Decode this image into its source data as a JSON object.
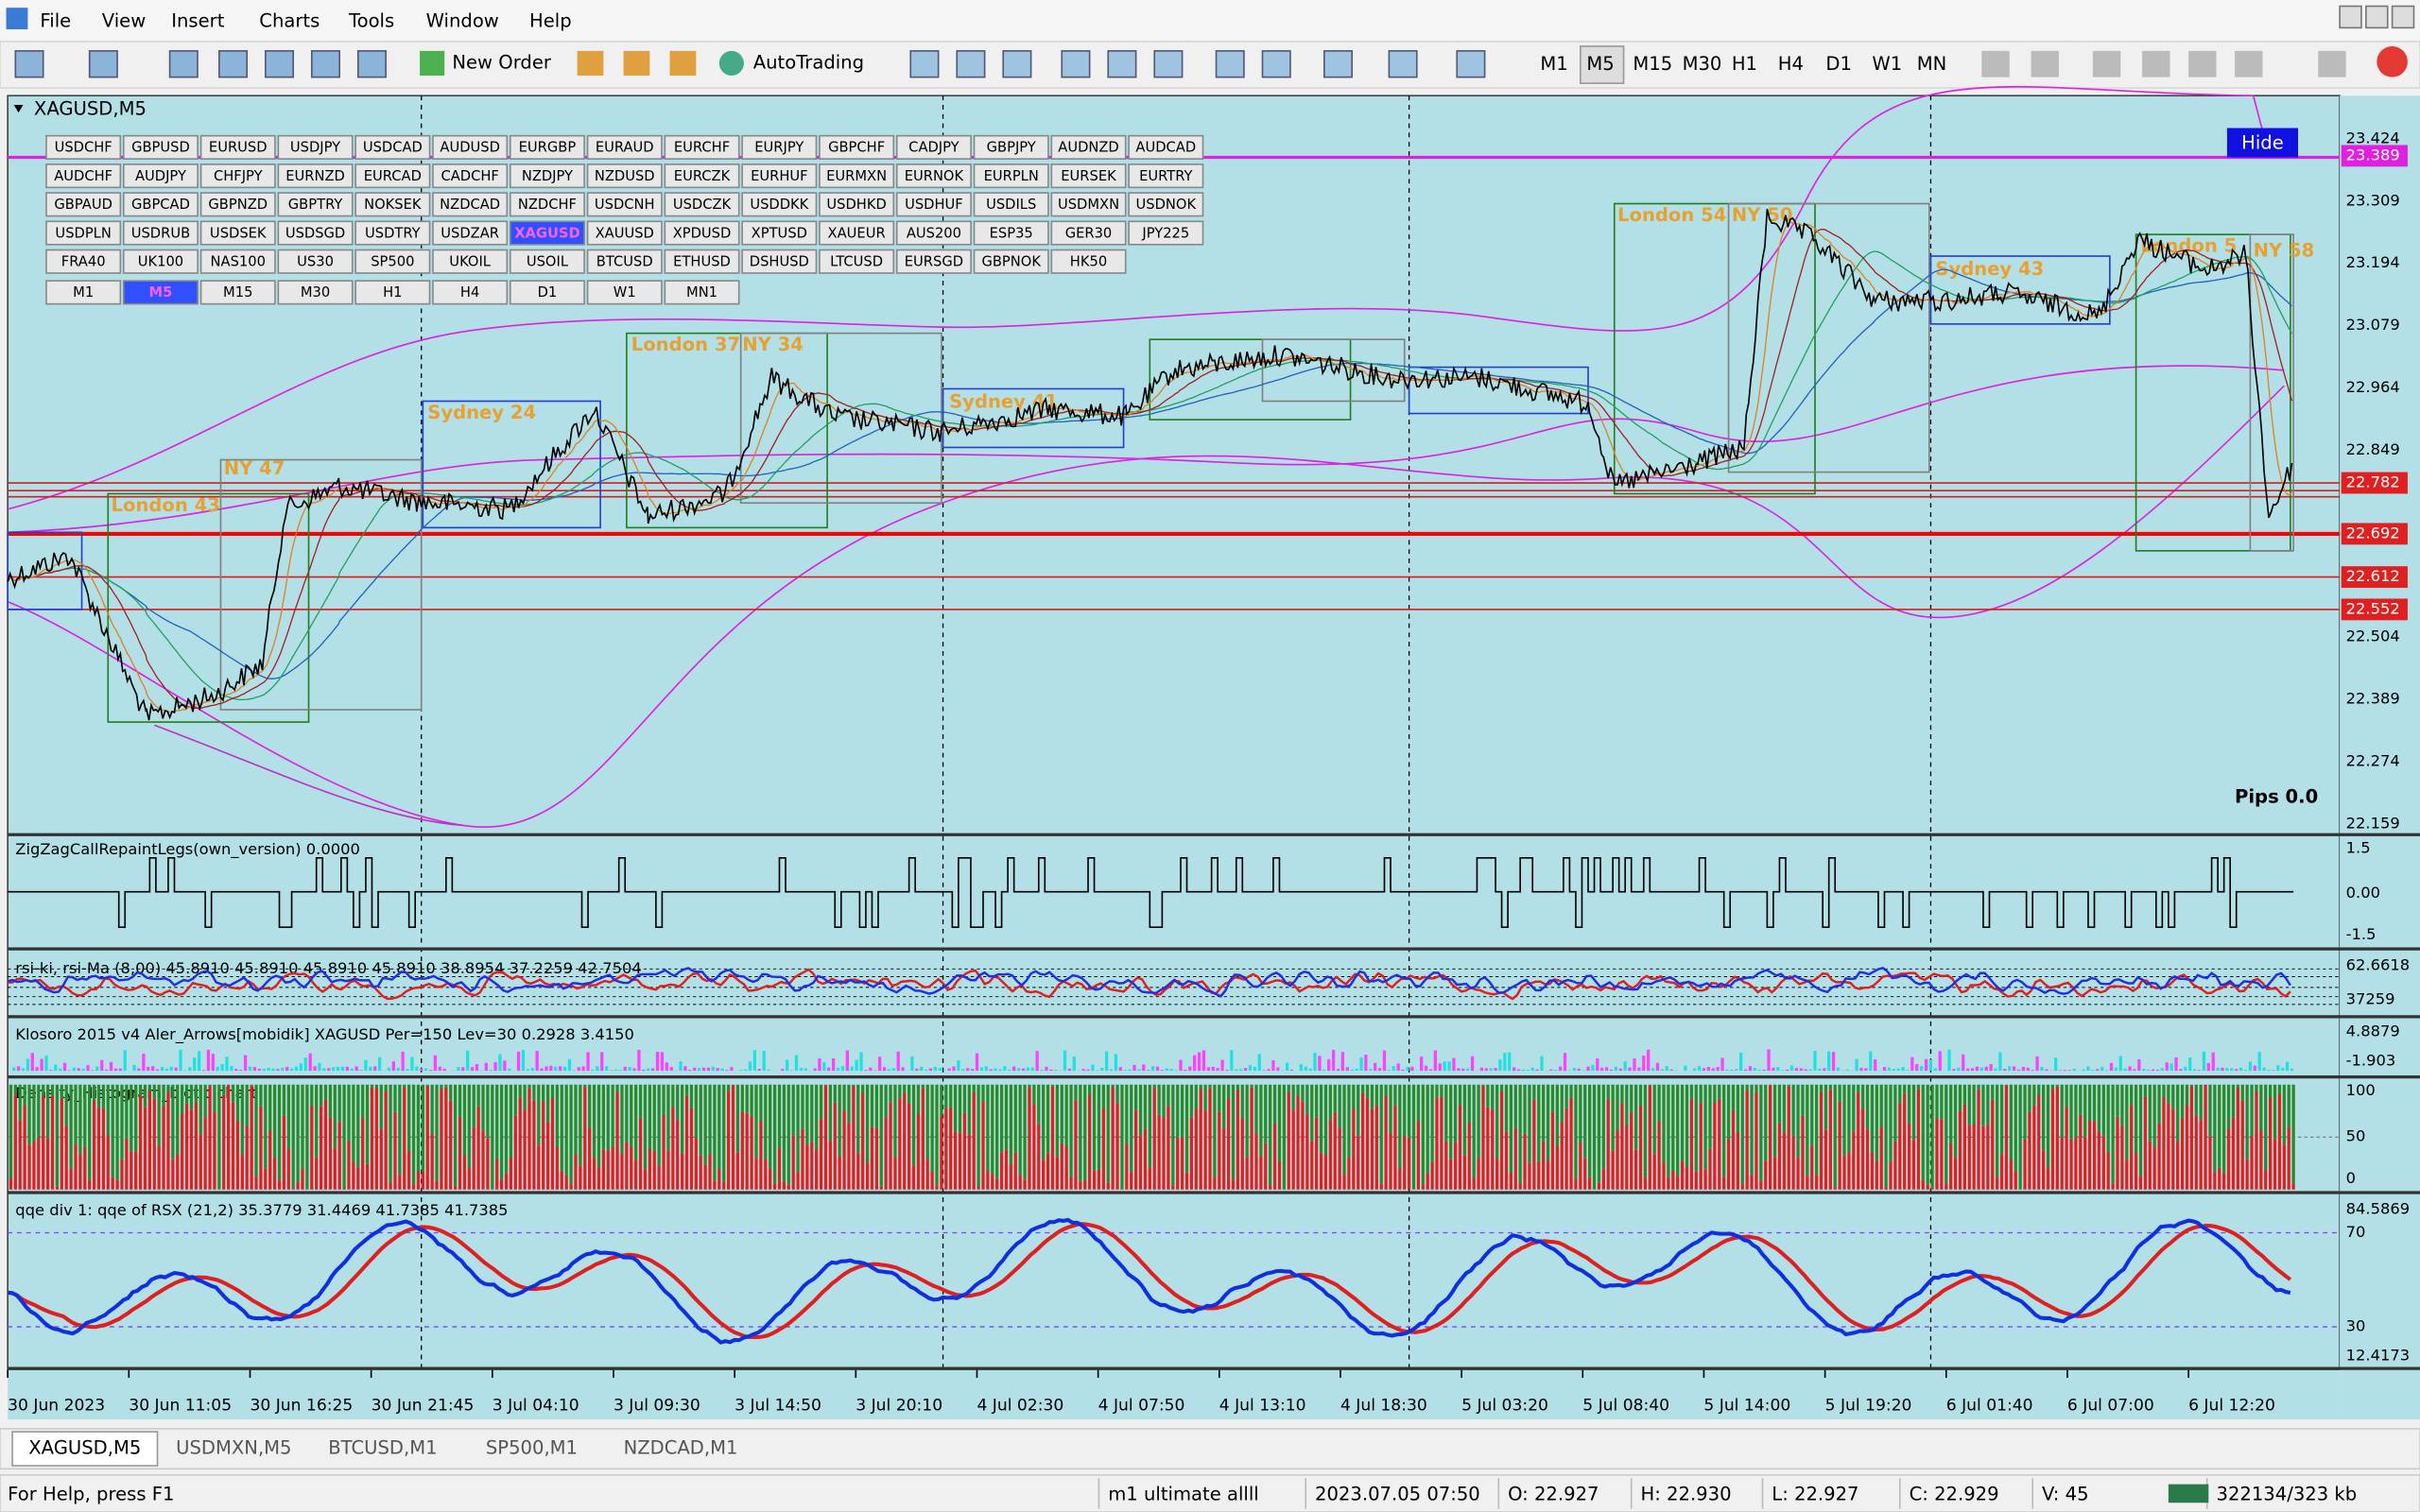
{
  "menu": [
    "File",
    "View",
    "Insert",
    "Charts",
    "Tools",
    "Window",
    "Help"
  ],
  "toolbar": {
    "new_order": "New Order",
    "autotrading": "AutoTrading",
    "timeframes": [
      "M1",
      "M5",
      "M15",
      "M30",
      "H1",
      "H4",
      "D1",
      "W1",
      "MN"
    ]
  },
  "chart": {
    "title": "XAGUSD,M5",
    "symbols": [
      [
        "USDCHF",
        "GBPUSD",
        "EURUSD",
        "USDJPY",
        "USDCAD",
        "AUDUSD",
        "EURGBP",
        "EURAUD",
        "EURCHF",
        "EURJPY",
        "GBPCHF",
        "CADJPY",
        "GBPJPY",
        "AUDNZD",
        "AUDCAD"
      ],
      [
        "AUDCHF",
        "AUDJPY",
        "CHFJPY",
        "EURNZD",
        "EURCAD",
        "CADCHF",
        "NZDJPY",
        "NZDUSD",
        "EURCZK",
        "EURHUF",
        "EURMXN",
        "EURNOK",
        "EURPLN",
        "EURSEK",
        "EURTRY"
      ],
      [
        "GBPAUD",
        "GBPCAD",
        "GBPNZD",
        "GBPTRY",
        "NOKSEK",
        "NZDCAD",
        "NZDCHF",
        "USDCNH",
        "USDCZK",
        "USDDKK",
        "USDHKD",
        "USDHUF",
        "USDILS",
        "USDMXN",
        "USDNOK"
      ],
      [
        "USDPLN",
        "USDRUB",
        "USDSEK",
        "USDSGD",
        "USDTRY",
        "USDZAR",
        "XAGUSD",
        "XAUUSD",
        "XPDUSD",
        "XPTUSD",
        "XAUEUR",
        "AUS200",
        "ESP35",
        "GER30",
        "JPY225"
      ],
      [
        "FRA40",
        "UK100",
        "NAS100",
        "US30",
        "SP500",
        "UKOIL",
        "USOIL",
        "BTCUSD",
        "ETHUSD",
        "DSHUSD",
        "LTCUSD",
        "EURSGD",
        "GBPNOK",
        "HK50"
      ]
    ],
    "timeframes": [
      "M1",
      "M5",
      "M15",
      "M30",
      "H1",
      "H4",
      "D1",
      "W1",
      "MN1"
    ],
    "hide": "Hide",
    "sessions": [
      "London 43",
      "NY 47",
      "Sydney 24",
      "London 37",
      "NY 34",
      "Sydney 41",
      "London 54",
      "NY 50",
      "Sydney 43",
      "London 5",
      "NY 58"
    ],
    "pips": "Pips 0.0",
    "price_labels": [
      "23.424",
      "23.309",
      "23.194",
      "23.079",
      "22.964",
      "22.849",
      "22.504",
      "22.389",
      "22.274",
      "22.159"
    ],
    "level_labels": [
      "23.389",
      "22.782",
      "22.692",
      "22.612",
      "22.552"
    ]
  },
  "indicators": [
    {
      "label": "ZigZagCallRepaintLegs(own_version) 0.0000",
      "axis": [
        "1.5",
        "0.00",
        "-1.5"
      ]
    },
    {
      "label": "rsi-ki, rsi-Ma (8,00) 45.8910 45.8910 45.8910 45.8910 38.8954 37.2259 42.7504",
      "axis": [
        "62.6618",
        "37259"
      ]
    },
    {
      "label": "Klosoro 2015 v4 Aler_Arrows[mobidik] XAGUSD Per=150 Lev=30 0.2928 3.4150",
      "axis": [
        "4.8879",
        "-1.903"
      ]
    },
    {
      "label": "Density_Histogram_biotic chart",
      "axis": [
        "100",
        "50",
        "0"
      ]
    },
    {
      "label": "qqe div 1: qqe of RSX (21,2) 35.3779 31.4469 41.7385 41.7385",
      "axis": [
        "84.5869",
        "70",
        "30",
        "12.4173"
      ]
    }
  ],
  "time_labels": [
    "30 Jun 2023",
    "30 Jun 11:05",
    "30 Jun 16:25",
    "30 Jun 21:45",
    "3 Jul 04:10",
    "3 Jul 09:30",
    "3 Jul 14:50",
    "3 Jul 20:10",
    "4 Jul 02:30",
    "4 Jul 07:50",
    "4 Jul 13:10",
    "4 Jul 18:30",
    "5 Jul 03:20",
    "5 Jul 08:40",
    "5 Jul 14:00",
    "5 Jul 19:20",
    "6 Jul 01:40",
    "6 Jul 07:00",
    "6 Jul 12:20"
  ],
  "tabs": [
    "XAGUSD,M5",
    "USDMXN,M5",
    "BTCUSD,M1",
    "SP500,M1",
    "NZDCAD,M1"
  ],
  "status": [
    "For Help, press F1",
    "m1 ultimate allll",
    "2023.07.05 07:50",
    "O: 22.927",
    "H: 22.930",
    "L: 22.927",
    "C: 22.929",
    "V: 45",
    "322134/323 kb"
  ]
}
